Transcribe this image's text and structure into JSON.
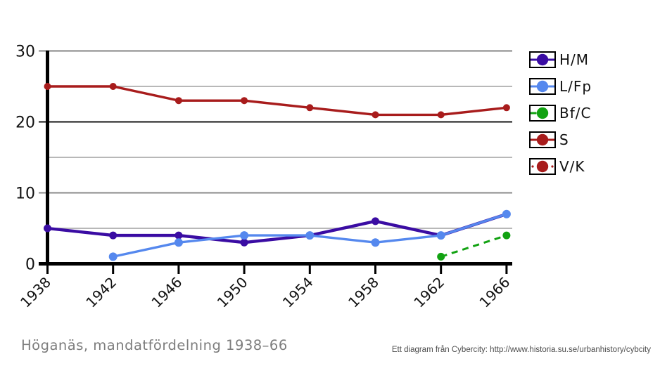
{
  "page": {
    "background": "#ffffff"
  },
  "title": {
    "text": "Höganäs, mandatfördelning 1938–66",
    "color": "#7d7d7d"
  },
  "footer": {
    "text": "Ett diagram från Cybercity: http://www.historia.su.se/urbanhistory/cybcity",
    "color": "#4d4d4d"
  },
  "chart_data": {
    "type": "line",
    "title": "Höganäs, mandatfördelning 1938–66",
    "x": [
      1938,
      1942,
      1946,
      1950,
      1954,
      1958,
      1962,
      1966
    ],
    "xtick_labels": [
      "1938",
      "1942",
      "1946",
      "1950",
      "1954",
      "1958",
      "1962",
      "1966"
    ],
    "ytick_labels": [
      "0",
      "10",
      "20",
      "30"
    ],
    "yticks_major": [
      0,
      10,
      20,
      30
    ],
    "yticks_minor": [
      5,
      15,
      25
    ],
    "ylim": [
      0,
      30
    ],
    "grid": true,
    "legend_position": "right",
    "series": [
      {
        "name": "S",
        "color": "#A81C1C",
        "line_style": "solid",
        "values": [
          25,
          25,
          23,
          23,
          22,
          21,
          21,
          22
        ]
      },
      {
        "name": "H/M",
        "color": "#3A0CA3",
        "line_style": "solid",
        "values": [
          5,
          4,
          4,
          3,
          4,
          6,
          4,
          7
        ]
      },
      {
        "name": "L/Fp",
        "color": "#5588EE",
        "line_style": "solid",
        "values": [
          null,
          1,
          3,
          4,
          4,
          3,
          4,
          7
        ]
      },
      {
        "name": "Bf/C",
        "color": "#12A212",
        "line_style": "dashed",
        "values": [
          null,
          null,
          null,
          null,
          null,
          null,
          1,
          4
        ]
      },
      {
        "name": "V/K",
        "color": "#A81C1C",
        "line_style": "dotted",
        "values": [
          null,
          null,
          null,
          null,
          null,
          null,
          null,
          null
        ]
      }
    ]
  },
  "legend": {
    "items": [
      {
        "label": "H/M",
        "color": "#3A0CA3",
        "line_style": "solid"
      },
      {
        "label": "L/Fp",
        "color": "#5588EE",
        "line_style": "solid"
      },
      {
        "label": "Bf/C",
        "color": "#12A212",
        "line_style": "dashed"
      },
      {
        "label": "S",
        "color": "#A81C1C",
        "line_style": "solid"
      },
      {
        "label": "V/K",
        "color": "#A81C1C",
        "line_style": "dotted"
      }
    ]
  }
}
